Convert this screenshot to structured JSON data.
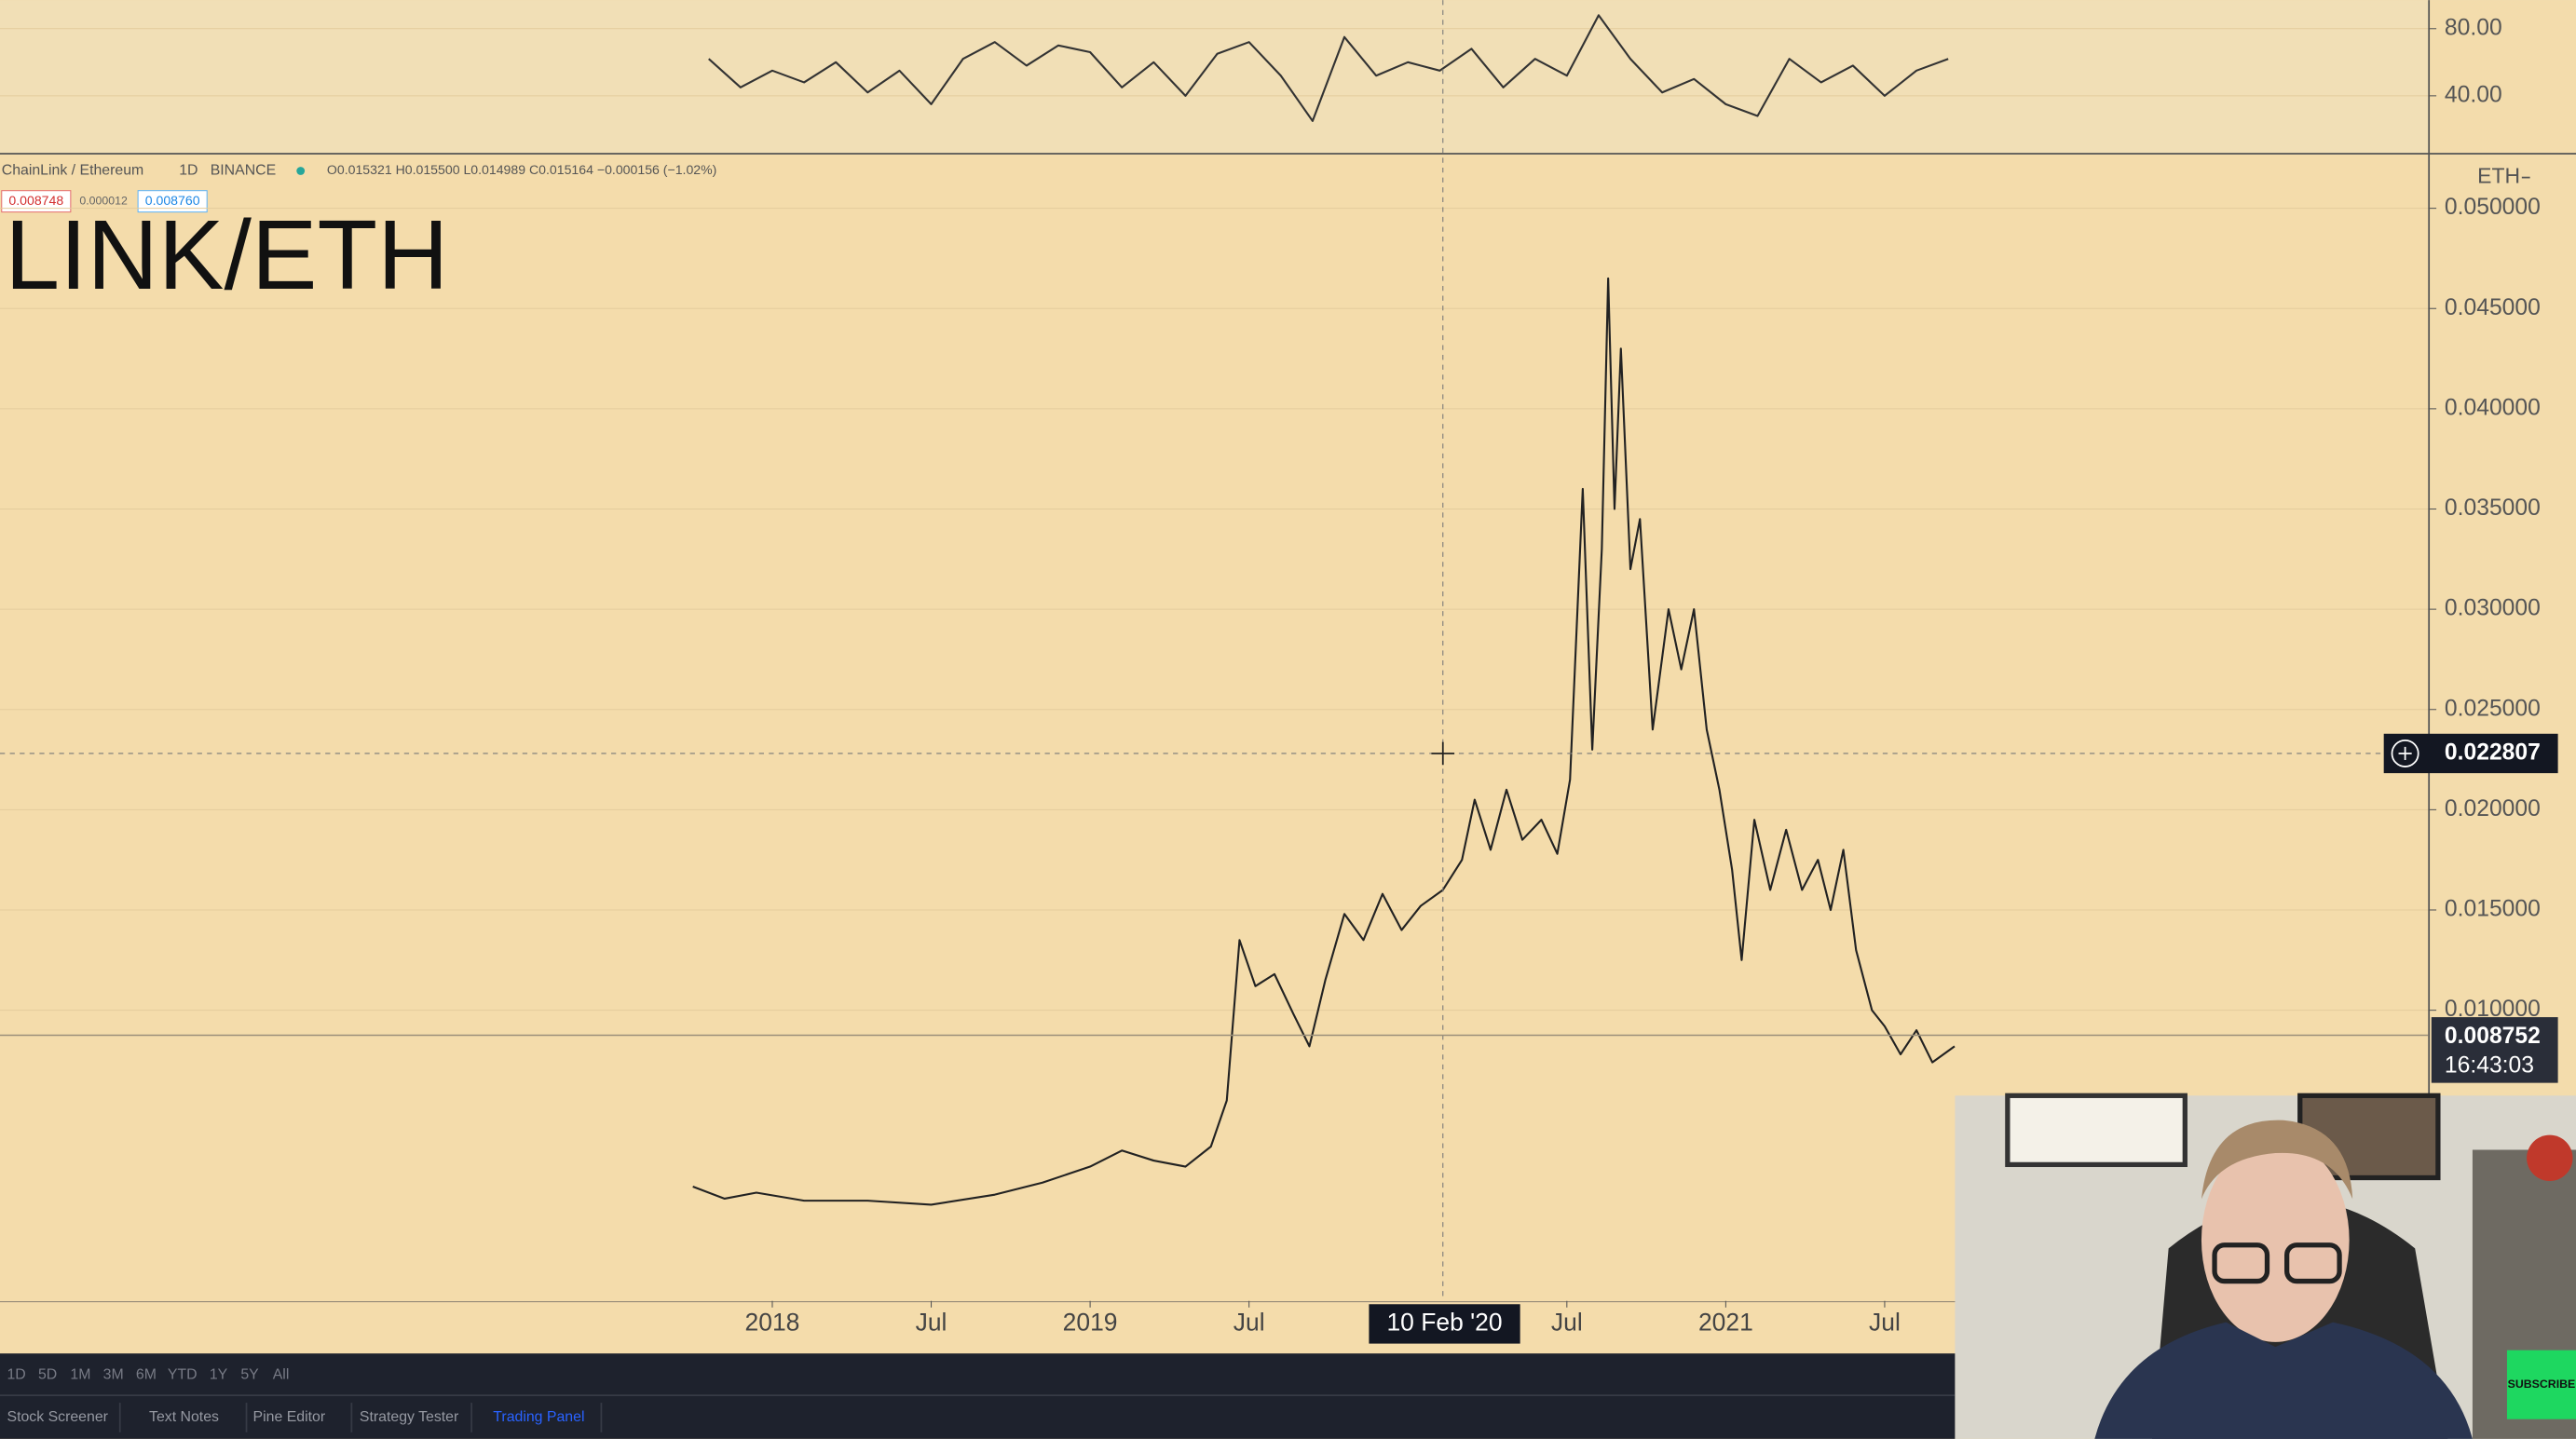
{
  "legend": {
    "symbol": "ChainLink / Ethereum",
    "interval": "1D",
    "exchange": "BINANCE",
    "ohlc": "O0.015321 H0.015500 L0.014989 C0.015164 −0.000156 (−1.02%)",
    "sell": "0.008748",
    "spread": "0.000012",
    "buy": "0.008760"
  },
  "chart_data": [
    {
      "type": "line",
      "color": "#333333",
      "x": [
        2017.8,
        2017.9,
        2018.0,
        2018.1,
        2018.2,
        2018.3,
        2018.4,
        2018.5,
        2018.6,
        2018.7,
        2018.8,
        2018.9,
        2019.0,
        2019.1,
        2019.2,
        2019.3,
        2019.4,
        2019.5,
        2019.6,
        2019.7,
        2019.8,
        2019.9,
        2020.0,
        2020.1,
        2020.2,
        2020.3,
        2020.4,
        2020.5,
        2020.6,
        2020.7,
        2020.8,
        2020.9,
        2021.0,
        2021.1,
        2021.2,
        2021.3,
        2021.4,
        2021.5,
        2021.6,
        2021.7
      ],
      "values": [
        62,
        45,
        55,
        48,
        60,
        42,
        55,
        35,
        62,
        72,
        58,
        70,
        66,
        45,
        60,
        40,
        65,
        72,
        52,
        25,
        75,
        52,
        60,
        55,
        68,
        45,
        62,
        52,
        88,
        62,
        42,
        50,
        35,
        28,
        62,
        48,
        58,
        40,
        55,
        62
      ],
      "xlim": [
        2015.57,
        2023.21
      ],
      "ylim": [
        6,
        97
      ],
      "yticks": [
        {
          "value": 80,
          "label": "80.00"
        },
        {
          "value": 40,
          "label": "40.00"
        }
      ]
    },
    {
      "type": "line",
      "title": "LINK/ETH",
      "currency": "ETH",
      "color": "#222222",
      "x": [
        2017.75,
        2017.85,
        2017.95,
        2018.1,
        2018.3,
        2018.5,
        2018.7,
        2018.85,
        2019.0,
        2019.1,
        2019.2,
        2019.3,
        2019.38,
        2019.43,
        2019.47,
        2019.52,
        2019.58,
        2019.64,
        2019.69,
        2019.74,
        2019.8,
        2019.86,
        2019.92,
        2019.98,
        2020.04,
        2020.11,
        2020.17,
        2020.21,
        2020.26,
        2020.31,
        2020.36,
        2020.42,
        2020.47,
        2020.51,
        2020.55,
        2020.58,
        2020.61,
        2020.63,
        2020.65,
        2020.67,
        2020.7,
        2020.73,
        2020.77,
        2020.82,
        2020.86,
        2020.9,
        2020.94,
        2020.98,
        2021.02,
        2021.05,
        2021.09,
        2021.14,
        2021.19,
        2021.24,
        2021.29,
        2021.33,
        2021.37,
        2021.41,
        2021.46,
        2021.5,
        2021.55,
        2021.6,
        2021.65,
        2021.72
      ],
      "values": [
        0.0012,
        0.0006,
        0.0009,
        0.0005,
        0.0005,
        0.0003,
        0.0008,
        0.0014,
        0.0022,
        0.003,
        0.0025,
        0.0022,
        0.0032,
        0.0055,
        0.0135,
        0.0112,
        0.0118,
        0.0098,
        0.0082,
        0.0115,
        0.0148,
        0.0135,
        0.0158,
        0.014,
        0.0152,
        0.016,
        0.0175,
        0.0205,
        0.018,
        0.021,
        0.0185,
        0.0195,
        0.0178,
        0.0215,
        0.036,
        0.023,
        0.033,
        0.0465,
        0.035,
        0.043,
        0.032,
        0.0345,
        0.024,
        0.03,
        0.027,
        0.03,
        0.024,
        0.021,
        0.017,
        0.0125,
        0.0195,
        0.016,
        0.019,
        0.016,
        0.0175,
        0.015,
        0.018,
        0.013,
        0.01,
        0.0092,
        0.0078,
        0.009,
        0.0074,
        0.0082
      ],
      "xlim": [
        2015.57,
        2023.21
      ],
      "ylim": [
        -0.0045,
        0.0526
      ],
      "yticks": [
        {
          "value": 0.05,
          "label": "0.050000"
        },
        {
          "value": 0.045,
          "label": "0.045000"
        },
        {
          "value": 0.04,
          "label": "0.040000"
        },
        {
          "value": 0.035,
          "label": "0.035000"
        },
        {
          "value": 0.03,
          "label": "0.030000"
        },
        {
          "value": 0.025,
          "label": "0.025000"
        },
        {
          "value": 0.02,
          "label": "0.020000"
        },
        {
          "value": 0.015,
          "label": "0.015000"
        },
        {
          "value": 0.01,
          "label": "0.010000"
        }
      ],
      "xticks": [
        2018,
        {
          "value": 2018.5,
          "label": "Jul"
        },
        2019,
        {
          "value": 2019.5,
          "label": "Jul"
        },
        {
          "value": 2020.5,
          "label": "Jul"
        },
        2021,
        {
          "value": 2021.5,
          "label": "Jul"
        }
      ],
      "crosshair": {
        "x": 2020.11,
        "x_label": "10 Feb '20",
        "y": 0.022807
      },
      "last_price": {
        "value": 0.008752,
        "countdown": "16:43:03"
      }
    }
  ],
  "toolbar": {
    "ranges": [
      "1D",
      "5D",
      "1M",
      "3M",
      "6M",
      "YTD",
      "1Y",
      "5Y",
      "All"
    ],
    "tabs": [
      "Stock Screener",
      "Text Notes",
      "Pine Editor",
      "Strategy Tester",
      "Trading Panel"
    ]
  },
  "webcam": {
    "button": "SUBSCRIBE"
  }
}
